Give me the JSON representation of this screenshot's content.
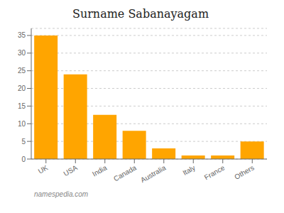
{
  "chart_data": {
    "type": "bar",
    "title": "Surname Sabanayagam",
    "categories": [
      "UK",
      "USA",
      "India",
      "Canada",
      "Australia",
      "Italy",
      "France",
      "Others"
    ],
    "values": [
      35,
      24,
      12.5,
      8,
      3,
      1,
      1,
      5
    ],
    "color": "#FFA500",
    "ylim": [
      0,
      37
    ],
    "yticks": [
      0,
      5,
      10,
      15,
      20,
      25,
      30,
      35
    ],
    "grid": true,
    "annotations": [
      "namespedia.com"
    ]
  }
}
